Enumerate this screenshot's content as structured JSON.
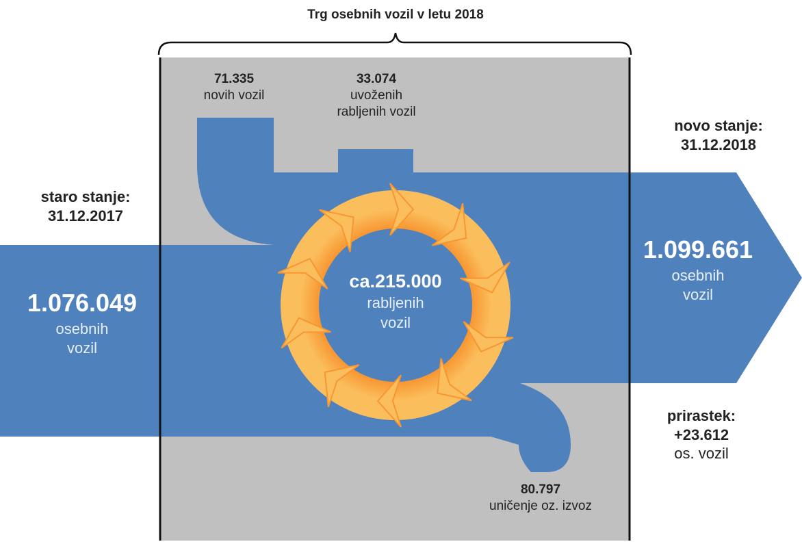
{
  "title": "Trg osebnih vozil v letu 2018",
  "old_state": {
    "heading": "staro stanje:",
    "date": "31.12.2017",
    "value": "1.076.049",
    "unit_line1": "osebnih",
    "unit_line2": "vozil"
  },
  "new_state": {
    "heading": "novo stanje:",
    "date": "31.12.2018",
    "value": "1.099.661",
    "unit_line1": "osebnih",
    "unit_line2": "vozil"
  },
  "new_vehicles": {
    "value": "71.335",
    "label": "novih vozil"
  },
  "imported_used": {
    "value": "33.074",
    "label_line1": "uvoženih",
    "label_line2": "rabljenih vozil"
  },
  "used_market": {
    "value": "ca.215.000",
    "label_line1": "rabljenih",
    "label_line2": "vozil"
  },
  "destroyed_exported": {
    "value": "80.797",
    "label": "uničenje oz. izvoz"
  },
  "increase": {
    "heading": "prirastek:",
    "value": "+23.612",
    "label": "os. vozil"
  },
  "colors": {
    "flow": "#4f81bd",
    "market_box": "#c0c0c0",
    "cycle": "#f79632",
    "cycle_light": "#fbbe5c",
    "text_dark": "#222222"
  }
}
